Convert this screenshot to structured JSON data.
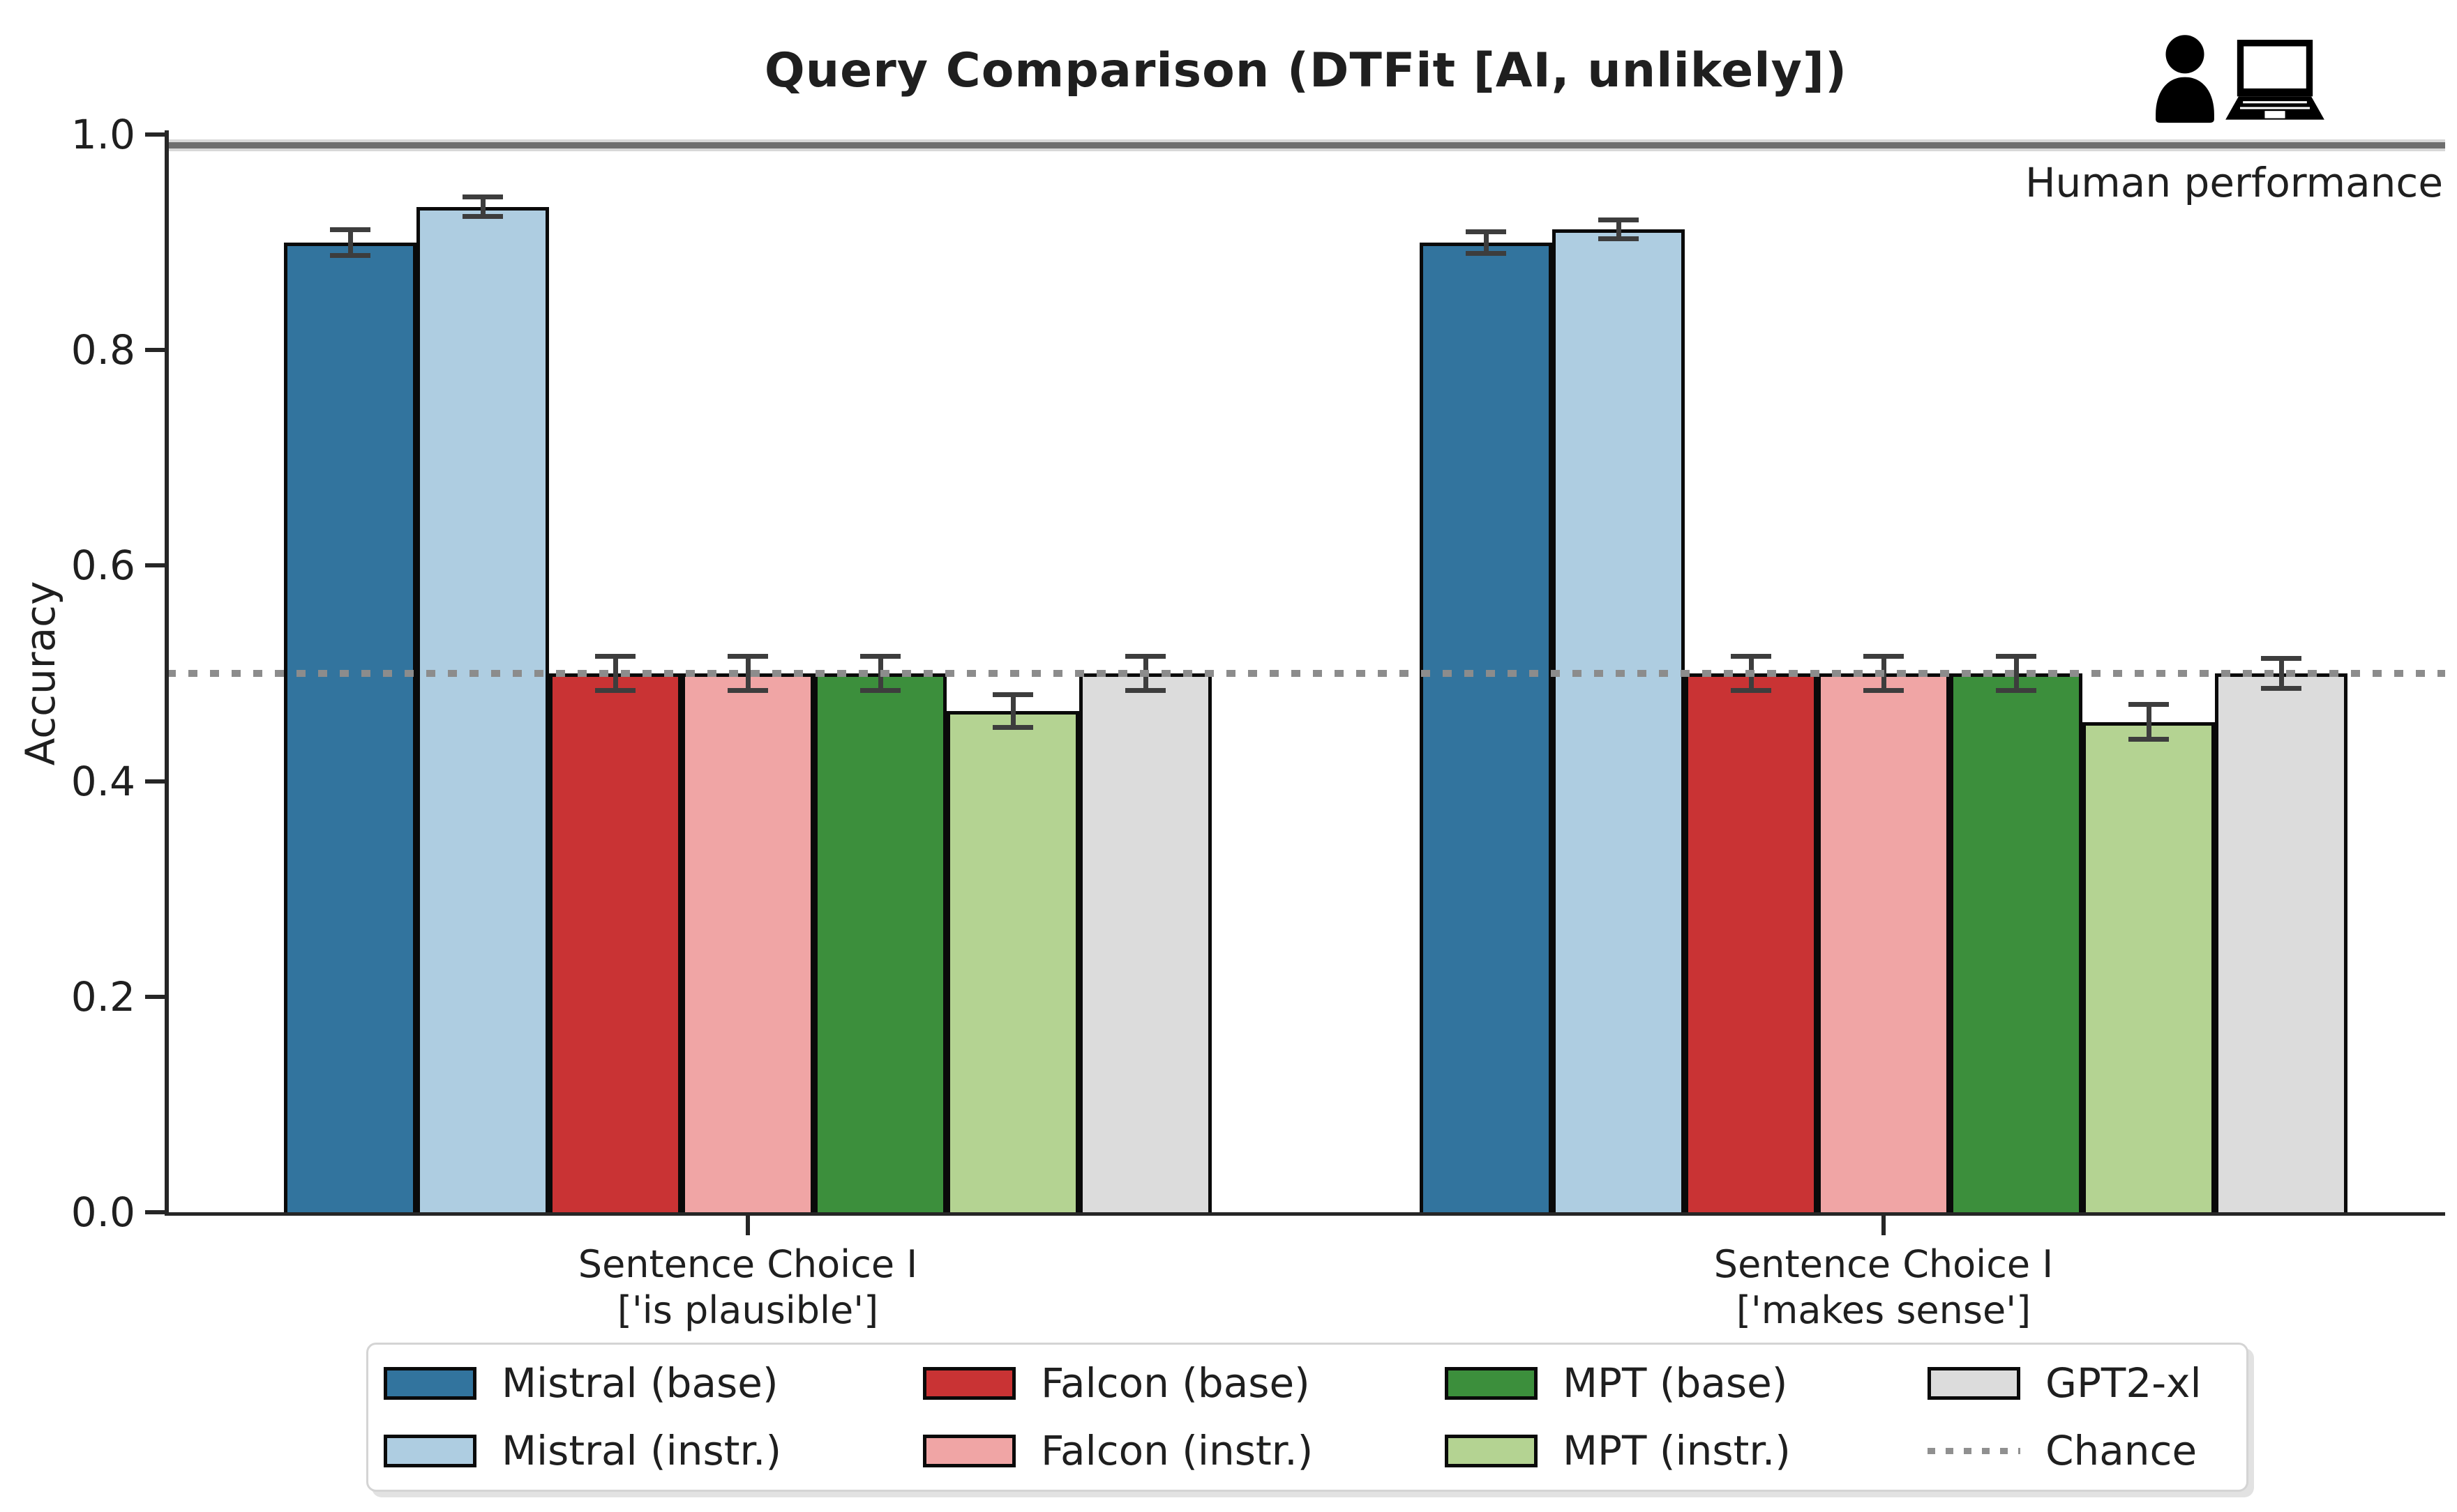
{
  "title": "Query Comparison (DTFit [AI, unlikely])",
  "annotations": {
    "human_performance": "Human performance"
  },
  "chart_data": {
    "type": "bar",
    "title": "Query Comparison (DTFit [AI, unlikely])",
    "xlabel": "",
    "ylabel": "Accuracy",
    "ylim": [
      0.0,
      1.0
    ],
    "yticks": [
      "0.0",
      "0.2",
      "0.4",
      "0.6",
      "0.8",
      "1.0"
    ],
    "grid": false,
    "legend_position": "bottom",
    "categories": [
      {
        "line1": "Sentence Choice I",
        "line2": "['is plausible']"
      },
      {
        "line1": "Sentence Choice I",
        "line2": "['makes sense']"
      }
    ],
    "series": [
      {
        "name": "Mistral (base)",
        "color": "#32749E",
        "values": [
          0.9,
          0.9
        ],
        "errors": [
          0.012,
          0.01
        ]
      },
      {
        "name": "Mistral (instr.)",
        "color": "#AECDE1",
        "values": [
          0.933,
          0.912
        ],
        "errors": [
          0.009,
          0.009
        ]
      },
      {
        "name": "Falcon (base)",
        "color": "#C93334",
        "values": [
          0.5,
          0.5
        ],
        "errors": [
          0.016,
          0.016
        ]
      },
      {
        "name": "Falcon (instr.)",
        "color": "#F0A5A5",
        "values": [
          0.5,
          0.5
        ],
        "errors": [
          0.016,
          0.016
        ]
      },
      {
        "name": "MPT (base)",
        "color": "#3C8F3C",
        "values": [
          0.5,
          0.5
        ],
        "errors": [
          0.016,
          0.016
        ]
      },
      {
        "name": "MPT (instr.)",
        "color": "#B4D392",
        "values": [
          0.465,
          0.455
        ],
        "errors": [
          0.015,
          0.016
        ]
      },
      {
        "name": "GPT2-xl",
        "color": "#DCDCDC",
        "values": [
          0.5,
          0.5
        ],
        "errors": [
          0.016,
          0.014
        ]
      }
    ],
    "reference_lines": [
      {
        "name": "Human performance",
        "value": 0.99,
        "style": "solid",
        "color": "#6e6e6e"
      },
      {
        "name": "Chance",
        "value": 0.5,
        "style": "dotted",
        "color": "#8c8c8c"
      }
    ],
    "legend_columns": [
      [
        "Mistral (base)",
        "Mistral (instr.)"
      ],
      [
        "Falcon (base)",
        "Falcon (instr.)"
      ],
      [
        "MPT (base)",
        "MPT (instr.)"
      ],
      [
        "GPT2-xl",
        "Chance"
      ]
    ]
  }
}
